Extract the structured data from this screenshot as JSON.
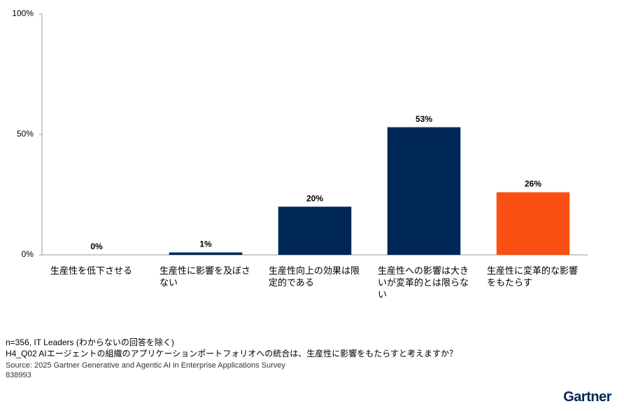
{
  "chart_data": {
    "type": "bar",
    "categories": [
      "生産性を低下させる",
      "生産性に影響を及ぼさない",
      "生産性向上の効果は限定的である",
      "生産性への影響は大きいが変革的とは限らない",
      "生産性に変革的な影響をもたらす"
    ],
    "values": [
      0,
      1,
      20,
      53,
      26
    ],
    "value_labels": [
      "0%",
      "1%",
      "20%",
      "53%",
      "26%"
    ],
    "colors": [
      "#002856",
      "#002856",
      "#002856",
      "#002856",
      "#fa5014"
    ],
    "ylim": [
      0,
      100
    ],
    "yticks": [
      {
        "value": 0,
        "label": "0%"
      },
      {
        "value": 50,
        "label": "50%"
      },
      {
        "value": 100,
        "label": "100%"
      }
    ],
    "grid": false
  },
  "notes": [
    "n=356, IT Leaders (わからないの回答を除く)",
    "H4_Q02 AIエージェントの組織のアプリケーションポートフォリオへの統合は、生産性に影響をもたらすと考えますか？"
  ],
  "source": "Source: 2025 Gartner Generative and Agentic AI in Enterprise Applications Survey",
  "id": "838993",
  "logo": "Gartner"
}
